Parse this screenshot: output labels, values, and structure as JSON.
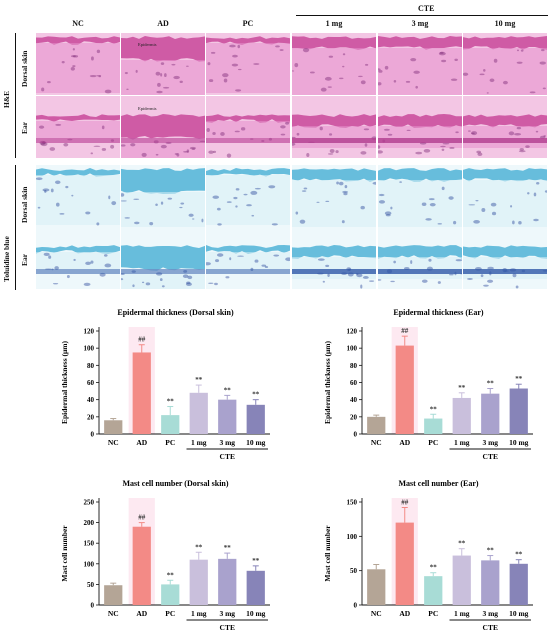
{
  "figure": {
    "cte_group": "CTE",
    "columns": [
      "NC",
      "AD",
      "PC",
      "1 mg",
      "3 mg",
      "10 mg"
    ],
    "stain_groups": [
      {
        "name": "H&E",
        "rows": [
          "Dorsal skin",
          "Ear"
        ]
      },
      {
        "name": "Toluidine blue",
        "rows": [
          "Dorsal skin",
          "Ear"
        ]
      }
    ],
    "epidermis_label": "Epidermis",
    "colors": {
      "he_bg": "#f3c6e4",
      "he_tissue": "#c8489a",
      "he_dark": "#7e2a78",
      "tb_bg": "#eef8fb",
      "tb_tissue": "#4fb3d6",
      "tb_dark": "#2c4a9b"
    }
  },
  "chart_data": [
    {
      "type": "bar",
      "title": "Epidermal thickness (Dorsal skin)",
      "ylabel": "Epidermal thickness (μm)",
      "categories": [
        "NC",
        "AD",
        "PC",
        "1 mg",
        "3 mg",
        "10 mg"
      ],
      "group_label": "CTE",
      "values": [
        16,
        95,
        22,
        48,
        40,
        34
      ],
      "errors": [
        2,
        9,
        10,
        9,
        5,
        6
      ],
      "annotations": [
        "",
        "##",
        "**",
        "**",
        "**",
        "**"
      ],
      "ylim": [
        0,
        120
      ],
      "yticks": [
        0,
        20,
        40,
        60,
        80,
        100,
        120
      ],
      "colors": [
        "#b4a596",
        "#f38a86",
        "#a8dcd6",
        "#c9bfdc",
        "#a9a2cd",
        "#8784b8"
      ]
    },
    {
      "type": "bar",
      "title": "Epidermal thickness (Ear)",
      "ylabel": "Epidermal thickness (μm)",
      "categories": [
        "NC",
        "AD",
        "PC",
        "1 mg",
        "3 mg",
        "10 mg"
      ],
      "group_label": "CTE",
      "values": [
        20,
        103,
        18,
        42,
        47,
        53
      ],
      "errors": [
        2,
        11,
        5,
        6,
        6,
        5
      ],
      "annotations": [
        "",
        "##",
        "**",
        "**",
        "**",
        "**"
      ],
      "ylim": [
        0,
        120
      ],
      "yticks": [
        0,
        20,
        40,
        60,
        80,
        100,
        120
      ],
      "colors": [
        "#b4a596",
        "#f38a86",
        "#a8dcd6",
        "#c9bfdc",
        "#a9a2cd",
        "#8784b8"
      ]
    },
    {
      "type": "bar",
      "title": "Mast cell number (Dorsal skin)",
      "ylabel": "Mast cell number",
      "categories": [
        "NC",
        "AD",
        "PC",
        "1 mg",
        "3 mg",
        "10 mg"
      ],
      "group_label": "CTE",
      "values": [
        48,
        190,
        50,
        110,
        112,
        83
      ],
      "errors": [
        5,
        10,
        10,
        18,
        14,
        12
      ],
      "annotations": [
        "",
        "##",
        "**",
        "**",
        "**",
        "**"
      ],
      "ylim": [
        0,
        250
      ],
      "yticks": [
        0,
        50,
        100,
        150,
        200,
        250
      ],
      "colors": [
        "#b4a596",
        "#f38a86",
        "#a8dcd6",
        "#c9bfdc",
        "#a9a2cd",
        "#8784b8"
      ]
    },
    {
      "type": "bar",
      "title": "Mast cell number (Ear)",
      "ylabel": "Mast cell number",
      "categories": [
        "NC",
        "AD",
        "PC",
        "1 mg",
        "3 mg",
        "10 mg"
      ],
      "group_label": "CTE",
      "values": [
        52,
        120,
        42,
        72,
        65,
        60
      ],
      "errors": [
        7,
        22,
        5,
        10,
        7,
        6
      ],
      "annotations": [
        "",
        "##",
        "**",
        "**",
        "**",
        "**"
      ],
      "ylim": [
        0,
        150
      ],
      "yticks": [
        0,
        50,
        100,
        150
      ],
      "colors": [
        "#b4a596",
        "#f38a86",
        "#a8dcd6",
        "#c9bfdc",
        "#a9a2cd",
        "#8784b8"
      ]
    }
  ]
}
